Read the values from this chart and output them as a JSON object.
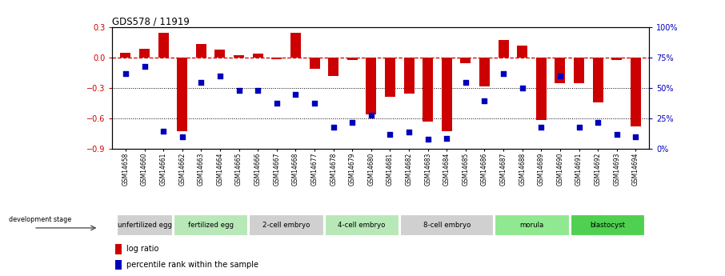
{
  "title": "GDS578 / 11919",
  "samples": [
    "GSM14658",
    "GSM14660",
    "GSM14661",
    "GSM14662",
    "GSM14663",
    "GSM14664",
    "GSM14665",
    "GSM14666",
    "GSM14667",
    "GSM14668",
    "GSM14677",
    "GSM14678",
    "GSM14679",
    "GSM14680",
    "GSM14681",
    "GSM14682",
    "GSM14683",
    "GSM14684",
    "GSM14685",
    "GSM14686",
    "GSM14687",
    "GSM14688",
    "GSM14689",
    "GSM14690",
    "GSM14691",
    "GSM14692",
    "GSM14693",
    "GSM14694"
  ],
  "log_ratio": [
    0.05,
    0.09,
    0.25,
    -0.72,
    0.14,
    0.08,
    0.03,
    0.04,
    -0.01,
    0.25,
    -0.11,
    -0.18,
    -0.02,
    -0.56,
    -0.38,
    -0.35,
    -0.63,
    -0.72,
    -0.05,
    -0.28,
    0.18,
    0.12,
    -0.61,
    -0.25,
    -0.25,
    -0.44,
    -0.02,
    -0.68
  ],
  "percentile": [
    62,
    68,
    15,
    10,
    55,
    60,
    48,
    48,
    38,
    45,
    38,
    18,
    22,
    28,
    12,
    14,
    8,
    9,
    55,
    40,
    62,
    50,
    18,
    60,
    18,
    22,
    12,
    10
  ],
  "stages": [
    {
      "label": "unfertilized egg",
      "start": 0,
      "end": 3,
      "color": "#d0d0d0"
    },
    {
      "label": "fertilized egg",
      "start": 3,
      "end": 7,
      "color": "#b8e8b8"
    },
    {
      "label": "2-cell embryo",
      "start": 7,
      "end": 11,
      "color": "#d0d0d0"
    },
    {
      "label": "4-cell embryo",
      "start": 11,
      "end": 15,
      "color": "#b8e8b8"
    },
    {
      "label": "8-cell embryo",
      "start": 15,
      "end": 20,
      "color": "#d0d0d0"
    },
    {
      "label": "morula",
      "start": 20,
      "end": 24,
      "color": "#90e890"
    },
    {
      "label": "blastocyst",
      "start": 24,
      "end": 28,
      "color": "#50d050"
    }
  ],
  "bar_color": "#cc0000",
  "dot_color": "#0000bb",
  "ylim": [
    -0.9,
    0.3
  ],
  "right_ylim": [
    0,
    100
  ],
  "right_yticks": [
    0,
    25,
    50,
    75,
    100
  ],
  "left_yticks": [
    -0.9,
    -0.6,
    -0.3,
    0.0,
    0.3
  ],
  "hline_color": "#cc0000",
  "legend_items": [
    {
      "label": "log ratio",
      "color": "#cc0000"
    },
    {
      "label": "percentile rank within the sample",
      "color": "#0000bb"
    }
  ]
}
